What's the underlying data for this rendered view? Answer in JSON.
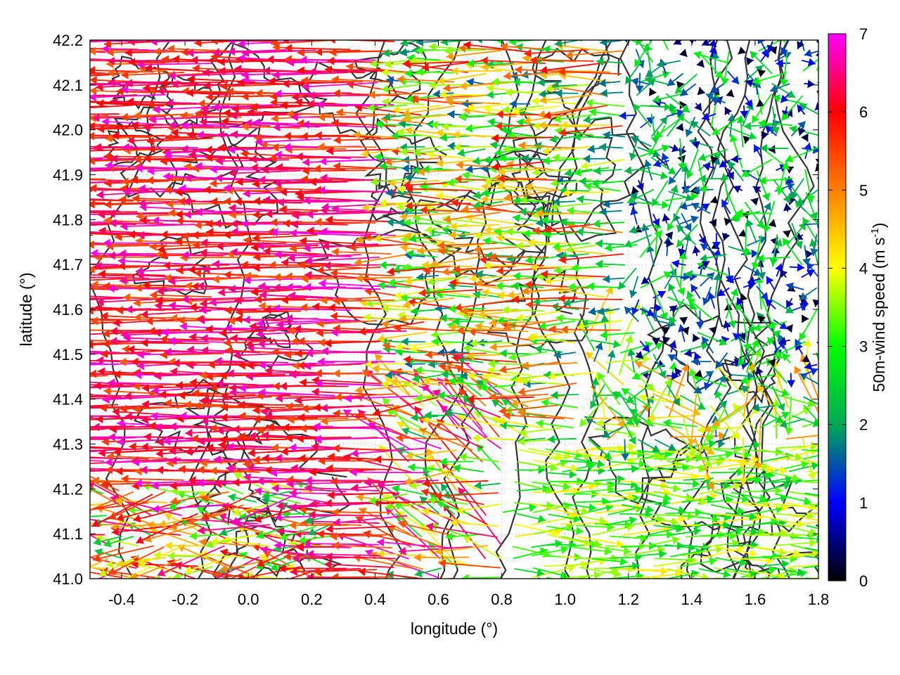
{
  "chart_data": {
    "type": "vector-field",
    "xlabel": "longitude (°)",
    "ylabel": "latitude (°)",
    "colorbar_label": {
      "main": "50m-wind speed (m s",
      "sup": "-1",
      "end": ")"
    },
    "xlim": [
      -0.5,
      1.8
    ],
    "ylim": [
      41.0,
      42.2
    ],
    "xticks": [
      "-0.4",
      "-0.2",
      "0.0",
      "0.2",
      "0.4",
      "0.6",
      "0.8",
      "1.0",
      "1.2",
      "1.4",
      "1.6",
      "1.8"
    ],
    "xtick_values": [
      -0.4,
      -0.2,
      0.0,
      0.2,
      0.4,
      0.6,
      0.8,
      1.0,
      1.2,
      1.4,
      1.6,
      1.8
    ],
    "yticks": [
      "41.0",
      "41.1",
      "41.2",
      "41.3",
      "41.4",
      "41.5",
      "41.6",
      "41.7",
      "41.8",
      "41.9",
      "42.0",
      "42.1",
      "42.2"
    ],
    "ytick_values": [
      41.0,
      41.1,
      41.2,
      41.3,
      41.4,
      41.5,
      41.6,
      41.7,
      41.8,
      41.9,
      42.0,
      42.1,
      42.2
    ],
    "colorbar_range": [
      0,
      7
    ],
    "colorbar_ticks": [
      "0",
      "1",
      "2",
      "3",
      "4",
      "5",
      "6",
      "7"
    ],
    "colorbar_tick_values": [
      0,
      1,
      2,
      3,
      4,
      5,
      6,
      7
    ],
    "grid": "dotted",
    "colorbar_placement": "right",
    "wind_regions": [
      {
        "region": "west",
        "lon_range": [
          -0.5,
          0.5
        ],
        "lat_range": [
          41.0,
          42.2
        ],
        "direction": "from east (westward)",
        "speed_range": [
          5,
          7
        ]
      },
      {
        "region": "central",
        "lon_range": [
          0.5,
          1.2
        ],
        "lat_range": [
          41.4,
          42.2
        ],
        "direction": "westward",
        "speed_range": [
          3,
          6
        ]
      },
      {
        "region": "northeast",
        "lon_range": [
          1.2,
          1.8
        ],
        "lat_range": [
          41.5,
          42.2
        ],
        "direction": "variable",
        "speed_range": [
          0,
          3
        ]
      },
      {
        "region": "southeast",
        "lon_range": [
          0.8,
          1.8
        ],
        "lat_range": [
          41.0,
          41.3
        ],
        "direction": "eastward",
        "speed_range": [
          2,
          4
        ]
      }
    ]
  },
  "colors": {
    "colormap": [
      "#000000",
      "#0000ff",
      "#00aa55",
      "#00ff00",
      "#ffff00",
      "#ff8000",
      "#ff0000",
      "#ff00ff"
    ],
    "contour": "#333333",
    "grid": "#aaaaaa"
  }
}
